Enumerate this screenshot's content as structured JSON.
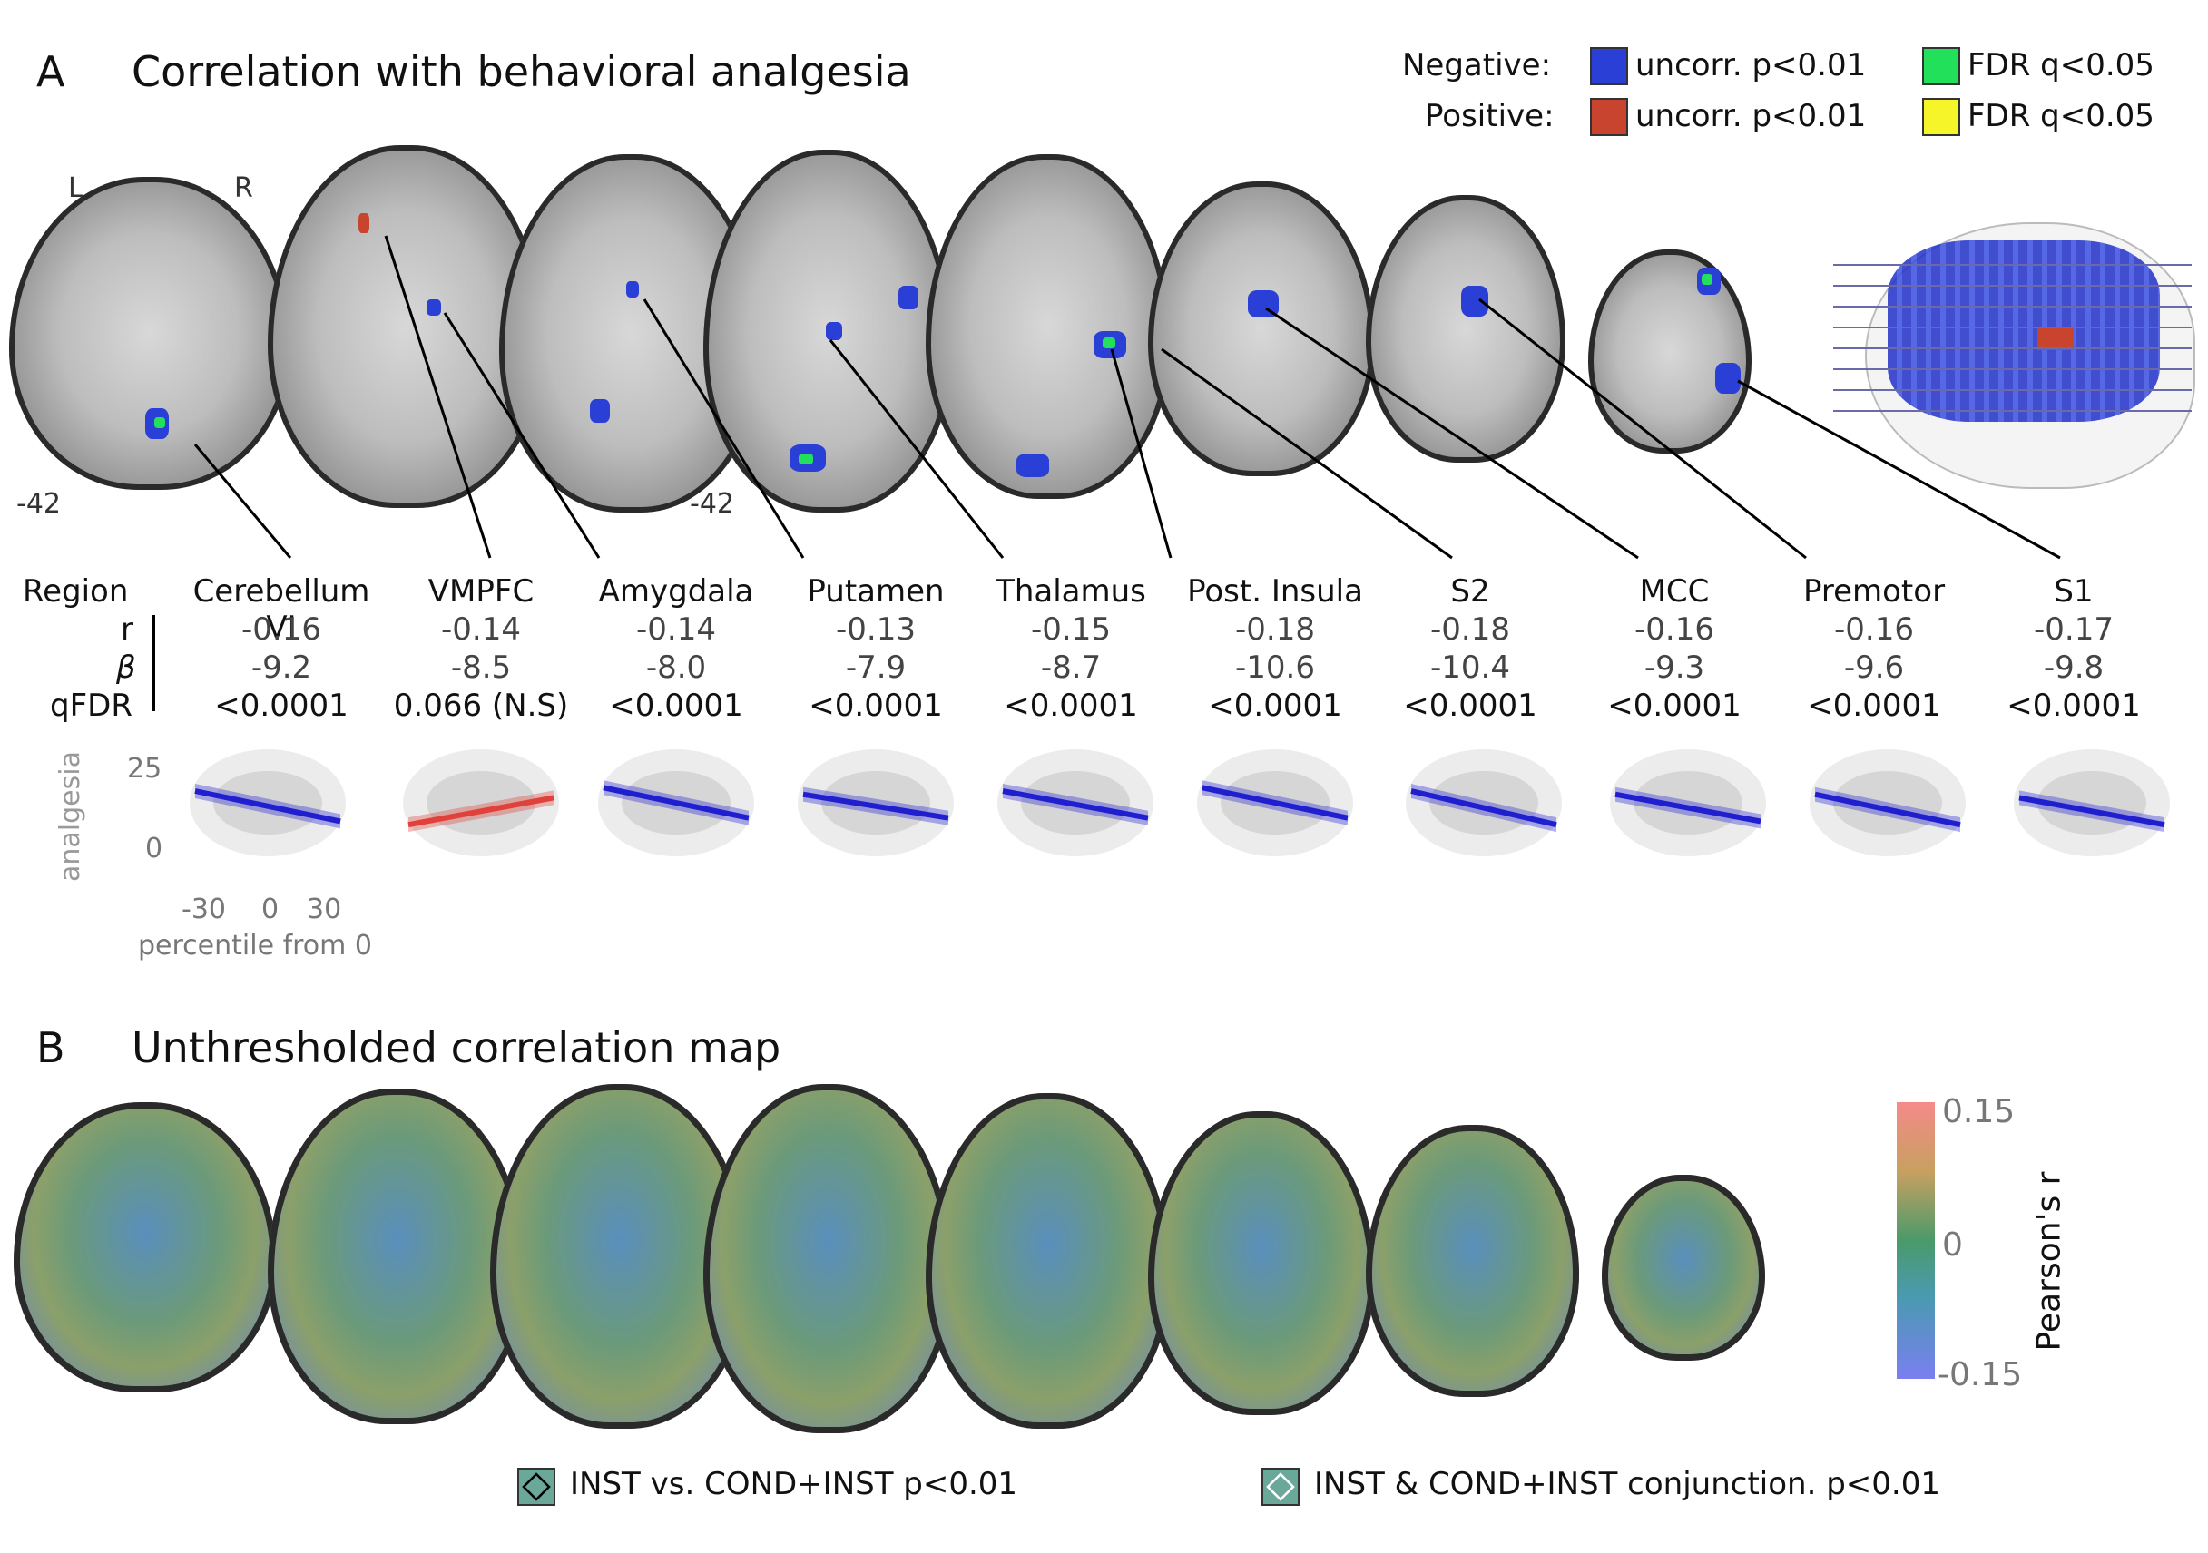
{
  "panelA": {
    "letter": "A",
    "title": "Correlation with behavioral analgesia",
    "orient_left": "L",
    "orient_right": "R",
    "slice_label_1": "-42",
    "slice_label_2": "-42"
  },
  "legend": {
    "negative_label": "Negative:",
    "positive_label": "Positive:",
    "neg_uncorr": "uncorr. p<0.01",
    "neg_fdr": "FDR q<0.05",
    "pos_uncorr": "uncorr. p<0.01",
    "pos_fdr": "FDR q<0.05",
    "colors": {
      "neg_uncorr": "#2a3fd6",
      "neg_fdr": "#22e05a",
      "pos_uncorr": "#c8442e",
      "pos_fdr": "#f5f52a"
    }
  },
  "table": {
    "row_headers": [
      "Region",
      "r",
      "β",
      "qFDR"
    ],
    "regions": [
      {
        "name": "Cerebellum VI",
        "r": "-0.16",
        "beta": "-9.2",
        "q": "<0.0001"
      },
      {
        "name": "VMPFC",
        "r": "-0.14",
        "beta": "-8.5",
        "q": "0.066 (N.S)"
      },
      {
        "name": "Amygdala",
        "r": "-0.14",
        "beta": "-8.0",
        "q": "<0.0001"
      },
      {
        "name": "Putamen",
        "r": "-0.13",
        "beta": "-7.9",
        "q": "<0.0001"
      },
      {
        "name": "Thalamus",
        "r": "-0.15",
        "beta": "-8.7",
        "q": "<0.0001"
      },
      {
        "name": "Post. Insula",
        "r": "-0.18",
        "beta": "-10.6",
        "q": "<0.0001"
      },
      {
        "name": "S2",
        "r": "-0.18",
        "beta": "-10.4",
        "q": "<0.0001"
      },
      {
        "name": "MCC",
        "r": "-0.16",
        "beta": "-9.3",
        "q": "<0.0001"
      },
      {
        "name": "Premotor",
        "r": "-0.16",
        "beta": "-9.6",
        "q": "<0.0001"
      },
      {
        "name": "S1",
        "r": "-0.17",
        "beta": "-9.8",
        "q": "<0.0001"
      }
    ]
  },
  "chart_data": {
    "type": "scatter",
    "ylabel": "analgesia",
    "xlabel": "percentile from 0",
    "y_ticks": [
      "25",
      "0"
    ],
    "x_ticks": [
      "-30",
      "0",
      "30"
    ],
    "series": [
      {
        "start": 16,
        "end": 7,
        "color": "#1f1fd0"
      },
      {
        "start": 6,
        "end": 14,
        "color": "#e0413a"
      },
      {
        "start": 17,
        "end": 8,
        "color": "#1f1fd0"
      },
      {
        "start": 15,
        "end": 8,
        "color": "#1f1fd0"
      },
      {
        "start": 16,
        "end": 8,
        "color": "#1f1fd0"
      },
      {
        "start": 17,
        "end": 8,
        "color": "#1f1fd0"
      },
      {
        "start": 16,
        "end": 6,
        "color": "#1f1fd0"
      },
      {
        "start": 15,
        "end": 7,
        "color": "#1f1fd0"
      },
      {
        "start": 15,
        "end": 6,
        "color": "#1f1fd0"
      },
      {
        "start": 14,
        "end": 6,
        "color": "#1f1fd0"
      }
    ]
  },
  "panelB": {
    "letter": "B",
    "title": "Unthresholded correlation map",
    "colorbar_max": "0.15",
    "colorbar_mid": "0",
    "colorbar_min": "-0.15",
    "colorbar_title": "Pearson's r"
  },
  "bottom_legend": {
    "item1": "INST vs. COND+INST p<0.01",
    "item2": "INST & COND+INST conjunction. p<0.01"
  }
}
